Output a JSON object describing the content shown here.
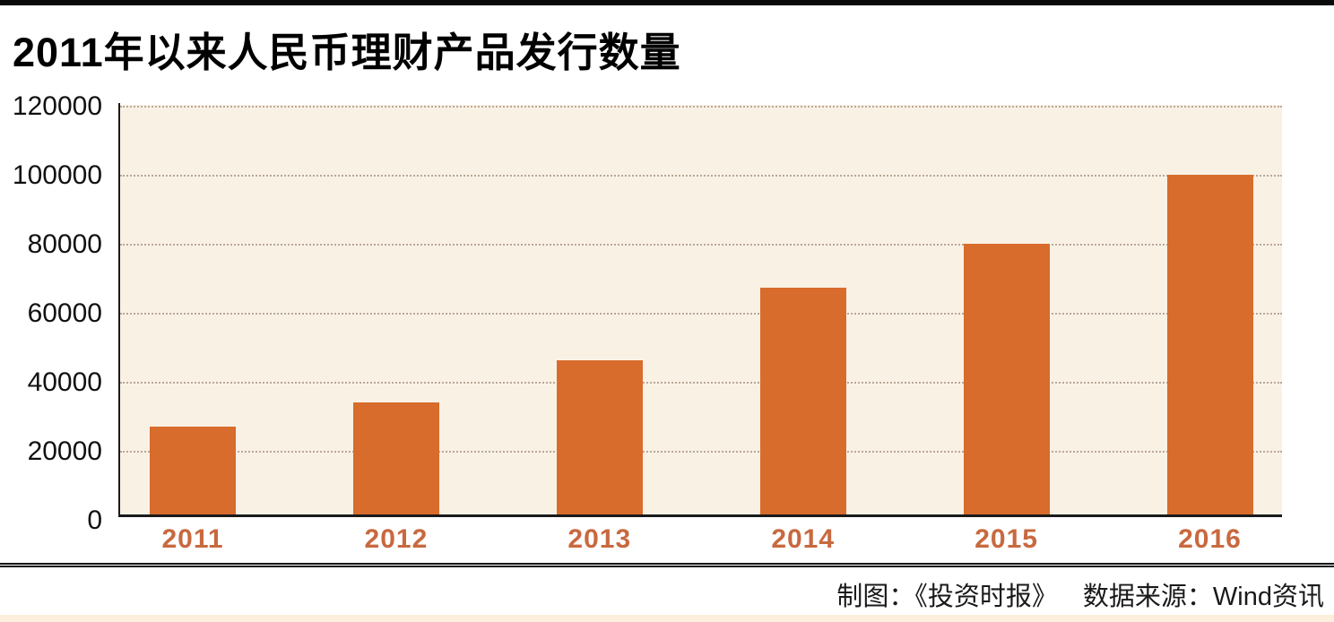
{
  "title": "2011年以来人民币理财产品发行数量",
  "chart_data": {
    "type": "bar",
    "title": "2011年以来人民币理财产品发行数量",
    "categories": [
      "2011",
      "2012",
      "2013",
      "2014",
      "2015",
      "2016"
    ],
    "values": [
      26000,
      33000,
      45500,
      67000,
      80000,
      100500
    ],
    "xlabel": "",
    "ylabel": "",
    "ylim": [
      0,
      120000
    ],
    "yticks": [
      120000,
      100000,
      80000,
      60000,
      40000,
      20000,
      0
    ],
    "ytick_labels": [
      "120000",
      "100000",
      "80000",
      "60000",
      "40000",
      "20000",
      "0"
    ],
    "grid": "horizontal-dotted",
    "legend_position": "none",
    "bar_color": "#d86c2c",
    "plot_background": "#faf1e5",
    "x_tick_color": "#c8693f"
  },
  "footer": {
    "credit": "制图：《投资时报》",
    "source": "数据来源：Wind资讯"
  },
  "colors": {
    "top_border": "#0a0a0a",
    "axis": "#1a1a1a",
    "title_text": "#000000",
    "footer_text": "#1a1a1a",
    "bottom_strip": "#fcefdc"
  }
}
